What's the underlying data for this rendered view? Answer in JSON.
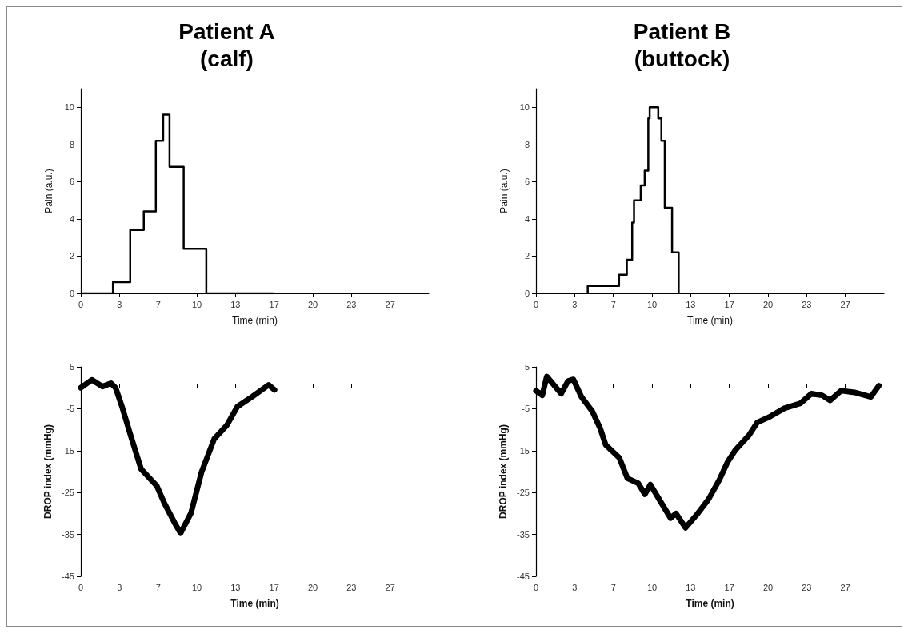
{
  "chart_data": [
    {
      "type": "step",
      "title": "Patient A\n(calf)",
      "xlabel": "Time (min)",
      "ylabel": "Pain (a.u.)",
      "xlim": [
        0,
        30
      ],
      "ylim": [
        0,
        11
      ],
      "xticks": [
        0,
        {
          "value": 3.33,
          "label": "3"
        },
        {
          "value": 6.67,
          "label": "7"
        },
        10,
        {
          "value": 13.33,
          "label": "13"
        },
        {
          "value": 16.67,
          "label": "17"
        },
        20,
        {
          "value": 23.33,
          "label": "23"
        },
        {
          "value": 26.67,
          "label": "27"
        }
      ],
      "yticks": [
        0,
        2,
        4,
        6,
        8,
        10
      ],
      "grid": false,
      "series": [
        {
          "color": "#000000",
          "x": [
            0,
            2.77,
            4.26,
            5.43,
            6.47,
            7.1,
            7.65,
            8.87,
            10.82,
            16.6
          ],
          "values": [
            0,
            0.6,
            3.4,
            4.4,
            8.2,
            9.6,
            6.8,
            2.4,
            0,
            0
          ]
        }
      ]
    },
    {
      "type": "step",
      "title": "Patient B\n(buttock)",
      "xlabel": "Time (min)",
      "ylabel": "Pain (a.u.)",
      "xlim": [
        0,
        30
      ],
      "ylim": [
        0,
        11
      ],
      "xticks": [
        0,
        {
          "value": 3.33,
          "label": "3"
        },
        {
          "value": 6.67,
          "label": "7"
        },
        10,
        {
          "value": 13.33,
          "label": "13"
        },
        {
          "value": 16.67,
          "label": "17"
        },
        20,
        {
          "value": 23.33,
          "label": "23"
        },
        {
          "value": 26.67,
          "label": "27"
        }
      ],
      "yticks": [
        0,
        2,
        4,
        6,
        8,
        10
      ],
      "grid": false,
      "series": [
        {
          "color": "#000000",
          "x": [
            4.46,
            4.46,
            7.16,
            7.83,
            8.29,
            8.45,
            9.03,
            9.37,
            9.68,
            9.8,
            10.54,
            10.81,
            11.1,
            11.73,
            12.3
          ],
          "values": [
            0,
            0.4,
            1.0,
            1.8,
            3.8,
            5.0,
            5.8,
            6.6,
            9.4,
            10,
            9.4,
            8.2,
            4.6,
            2.2,
            0
          ]
        }
      ]
    },
    {
      "type": "line",
      "xlabel": "Time (min)",
      "ylabel": "DROP index (mmHg)",
      "xlim": [
        0,
        30
      ],
      "ylim": [
        -45,
        5
      ],
      "xticks": [
        0,
        {
          "value": 3.33,
          "label": "3"
        },
        {
          "value": 6.67,
          "label": "7"
        },
        10,
        {
          "value": 13.33,
          "label": "13"
        },
        {
          "value": 16.67,
          "label": "17"
        },
        20,
        {
          "value": 23.33,
          "label": "23"
        },
        {
          "value": 26.67,
          "label": "27"
        }
      ],
      "yticks": [
        -45,
        -35,
        -25,
        -15,
        -5,
        5
      ],
      "grid": false,
      "series": [
        {
          "color": "#000000",
          "x": [
            0,
            0.96,
            1.86,
            2.6,
            3.0,
            3.6,
            4.3,
            5.2,
            6.55,
            7.2,
            8.1,
            8.6,
            9.5,
            10.4,
            11.5,
            12.6,
            13.5,
            14.8,
            16.2,
            16.7
          ],
          "values": [
            0,
            1.9,
            0.3,
            1.1,
            0,
            -4.9,
            -11.4,
            -19.4,
            -23.4,
            -27.5,
            -32.3,
            -34.7,
            -29.9,
            -20.2,
            -12.2,
            -8.9,
            -4.5,
            -2.1,
            0.7,
            -0.5
          ]
        }
      ]
    },
    {
      "type": "line",
      "xlabel": "Time (min)",
      "ylabel": "DROP index (mmHg)",
      "xlim": [
        0,
        30
      ],
      "ylim": [
        -45,
        5
      ],
      "xticks": [
        0,
        {
          "value": 3.33,
          "label": "3"
        },
        {
          "value": 6.67,
          "label": "7"
        },
        10,
        {
          "value": 13.33,
          "label": "13"
        },
        {
          "value": 16.67,
          "label": "17"
        },
        20,
        {
          "value": 23.33,
          "label": "23"
        },
        {
          "value": 26.67,
          "label": "27"
        }
      ],
      "yticks": [
        -45,
        -35,
        -25,
        -15,
        -5,
        5
      ],
      "grid": false,
      "series": [
        {
          "color": "#000000",
          "x": [
            0,
            0.54,
            0.93,
            1.59,
            2.17,
            2.75,
            3.22,
            3.92,
            4.85,
            5.55,
            6.0,
            7.18,
            7.88,
            8.81,
            9.39,
            9.86,
            10.68,
            11.6,
            12.07,
            12.89,
            13.94,
            14.87,
            15.8,
            16.5,
            17.2,
            18.37,
            19.07,
            20.23,
            21.4,
            22.8,
            23.73,
            24.66,
            25.36,
            26.3,
            27.46,
            28.86,
            29.56
          ],
          "values": [
            -0.7,
            -1.8,
            2.7,
            0.5,
            -1.4,
            1.6,
            2.0,
            -2.2,
            -5.6,
            -9.8,
            -13.6,
            -16.7,
            -21.6,
            -22.8,
            -25.4,
            -23.1,
            -26.9,
            -31.1,
            -30,
            -33.4,
            -30,
            -26.6,
            -22,
            -17.8,
            -14.8,
            -11.3,
            -8.3,
            -6.8,
            -4.9,
            -3.7,
            -1.4,
            -1.8,
            -3.0,
            -0.7,
            -1.1,
            -2.2,
            0.5
          ]
        }
      ]
    }
  ]
}
